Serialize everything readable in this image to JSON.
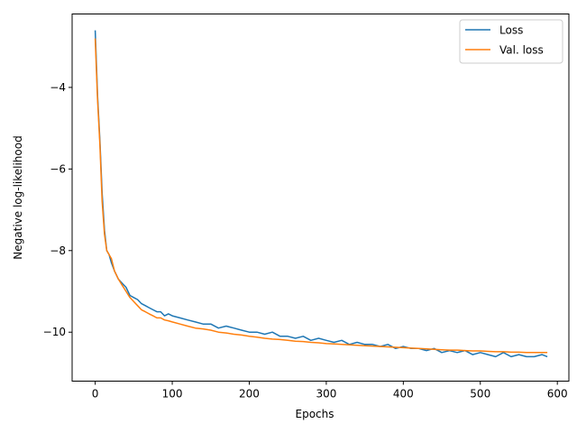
{
  "chart_data": {
    "type": "line",
    "title": "",
    "xlabel": "Epochs",
    "ylabel": "Negative log-likelihood",
    "xlim": [
      -30,
      615
    ],
    "ylim": [
      -11.2,
      -2.2
    ],
    "xticks": [
      0,
      100,
      200,
      300,
      400,
      500,
      600
    ],
    "yticks": [
      -10,
      -8,
      -6,
      -4
    ],
    "ytick_labels": [
      "−10",
      "−8",
      "−6",
      "−4"
    ],
    "grid": false,
    "legend_position": "top-right",
    "series": [
      {
        "name": "Loss",
        "color": "#1f77b4",
        "x": [
          0,
          3,
          6,
          9,
          12,
          15,
          18,
          21,
          25,
          30,
          35,
          40,
          45,
          50,
          55,
          60,
          65,
          70,
          75,
          80,
          85,
          90,
          95,
          100,
          110,
          120,
          130,
          140,
          150,
          160,
          170,
          180,
          190,
          200,
          210,
          220,
          230,
          240,
          250,
          260,
          270,
          280,
          290,
          300,
          310,
          320,
          330,
          340,
          350,
          360,
          370,
          380,
          390,
          400,
          410,
          420,
          430,
          440,
          450,
          460,
          470,
          480,
          490,
          500,
          510,
          520,
          530,
          540,
          550,
          560,
          570,
          580,
          587
        ],
        "y": [
          -2.6,
          -4.2,
          -5.3,
          -6.6,
          -7.5,
          -8.0,
          -8.1,
          -8.3,
          -8.5,
          -8.7,
          -8.8,
          -8.9,
          -9.1,
          -9.15,
          -9.2,
          -9.3,
          -9.35,
          -9.4,
          -9.45,
          -9.5,
          -9.5,
          -9.6,
          -9.55,
          -9.6,
          -9.65,
          -9.7,
          -9.75,
          -9.8,
          -9.8,
          -9.9,
          -9.85,
          -9.9,
          -9.95,
          -10.0,
          -10.0,
          -10.05,
          -10.0,
          -10.1,
          -10.1,
          -10.15,
          -10.1,
          -10.2,
          -10.15,
          -10.2,
          -10.25,
          -10.2,
          -10.3,
          -10.25,
          -10.3,
          -10.3,
          -10.35,
          -10.3,
          -10.4,
          -10.35,
          -10.4,
          -10.4,
          -10.45,
          -10.4,
          -10.5,
          -10.45,
          -10.5,
          -10.45,
          -10.55,
          -10.5,
          -10.55,
          -10.6,
          -10.5,
          -10.6,
          -10.55,
          -10.6,
          -10.6,
          -10.55,
          -10.6
        ]
      },
      {
        "name": "Val. loss",
        "color": "#ff7f0e",
        "x": [
          0,
          3,
          6,
          9,
          12,
          15,
          18,
          21,
          25,
          30,
          35,
          40,
          45,
          50,
          55,
          60,
          65,
          70,
          75,
          80,
          85,
          90,
          95,
          100,
          110,
          120,
          130,
          140,
          150,
          160,
          170,
          180,
          190,
          200,
          210,
          220,
          230,
          240,
          250,
          260,
          270,
          280,
          290,
          300,
          310,
          320,
          330,
          340,
          350,
          360,
          370,
          380,
          390,
          400,
          410,
          420,
          430,
          440,
          450,
          460,
          470,
          480,
          490,
          500,
          510,
          520,
          530,
          540,
          550,
          560,
          570,
          580,
          587
        ],
        "y": [
          -2.8,
          -4.3,
          -5.4,
          -6.8,
          -7.6,
          -8.0,
          -8.1,
          -8.2,
          -8.5,
          -8.7,
          -8.85,
          -9.0,
          -9.15,
          -9.25,
          -9.35,
          -9.45,
          -9.5,
          -9.55,
          -9.6,
          -9.65,
          -9.65,
          -9.7,
          -9.72,
          -9.75,
          -9.8,
          -9.85,
          -9.9,
          -9.92,
          -9.95,
          -10.0,
          -10.02,
          -10.05,
          -10.07,
          -10.1,
          -10.12,
          -10.15,
          -10.17,
          -10.18,
          -10.2,
          -10.22,
          -10.23,
          -10.25,
          -10.26,
          -10.28,
          -10.29,
          -10.3,
          -10.31,
          -10.32,
          -10.33,
          -10.34,
          -10.35,
          -10.36,
          -10.37,
          -10.38,
          -10.39,
          -10.4,
          -10.41,
          -10.42,
          -10.43,
          -10.44,
          -10.44,
          -10.45,
          -10.46,
          -10.46,
          -10.47,
          -10.48,
          -10.48,
          -10.49,
          -10.49,
          -10.5,
          -10.5,
          -10.5,
          -10.5
        ]
      }
    ]
  }
}
